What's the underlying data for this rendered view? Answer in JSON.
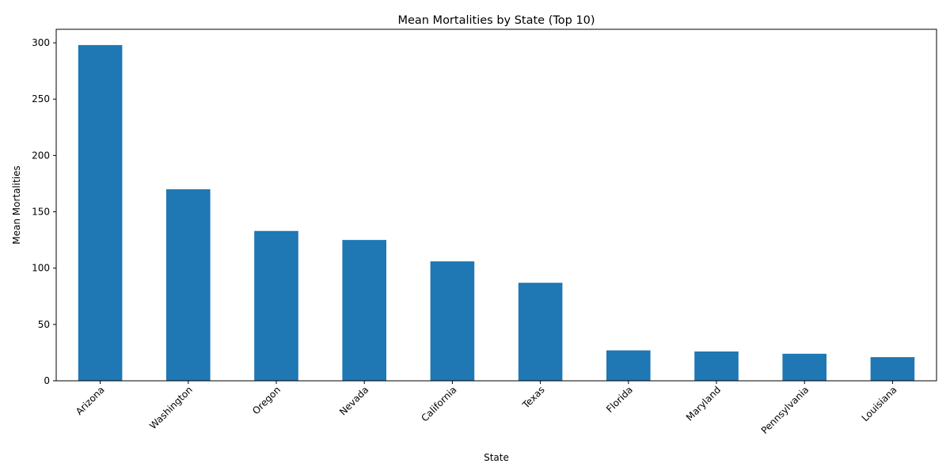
{
  "chart_data": {
    "type": "bar",
    "title": "Mean Mortalities by State (Top 10)",
    "xlabel": "State",
    "ylabel": "Mean Mortalities",
    "categories": [
      "Arizona",
      "Washington",
      "Oregon",
      "Nevada",
      "California",
      "Texas",
      "Florida",
      "Maryland",
      "Pennsylvania",
      "Louisiana"
    ],
    "values": [
      298,
      170,
      133,
      125,
      106,
      87,
      27,
      26,
      24,
      21
    ],
    "ylim": [
      0,
      312
    ],
    "yticks": [
      0,
      50,
      100,
      150,
      200,
      250,
      300
    ],
    "bar_color": "#1f77b4",
    "grid": false,
    "legend": "none",
    "xtick_rotation": 45
  }
}
